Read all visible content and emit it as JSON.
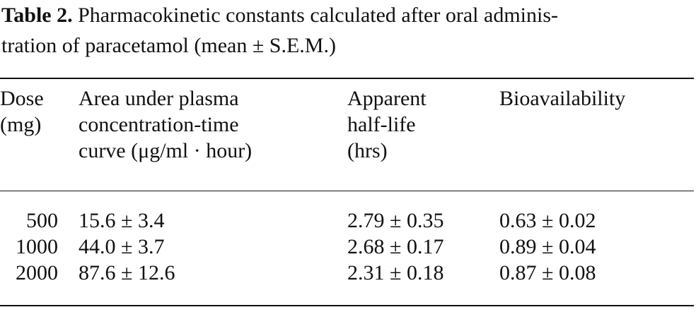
{
  "caption": {
    "label": "Table 2.",
    "line1_text": " Pharmacokinetic constants calculated after oral adminis-",
    "line2_text": "tration of paracetamol (mean ± S.E.M.)"
  },
  "headers": {
    "dose": [
      "Dose",
      "(mg)"
    ],
    "auc": [
      "Area under plasma",
      "concentration-time",
      "curve (μg/ml · hour)"
    ],
    "half_life": [
      "Apparent",
      "half-life",
      "(hrs)"
    ],
    "bioavailability": [
      "Bioavailability"
    ]
  },
  "rows": [
    {
      "dose": "500",
      "auc": "15.6 ± 3.4",
      "half_life": "2.79 ± 0.35",
      "bioavailability": "0.63 ± 0.02"
    },
    {
      "dose": "1000",
      "auc": "44.0 ± 3.7",
      "half_life": "2.68 ± 0.17",
      "bioavailability": "0.89 ± 0.04"
    },
    {
      "dose": "2000",
      "auc": "87.6 ± 12.6",
      "half_life": "2.31 ± 0.18",
      "bioavailability": "0.87 ± 0.08"
    }
  ]
}
